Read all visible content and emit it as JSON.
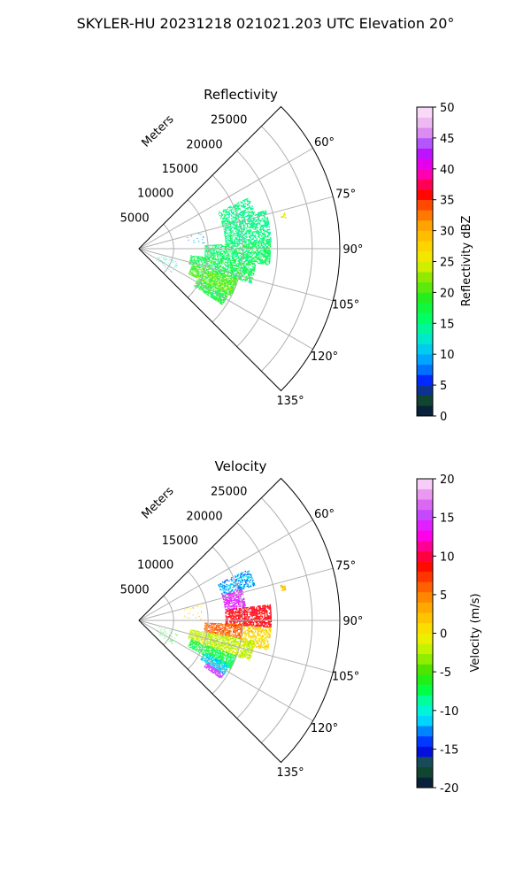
{
  "figure": {
    "suptitle": "SKYLER-HU  20231218  021021.203 UTC Elevation 20°"
  },
  "chart_data": [
    {
      "type": "polar-sector",
      "title": "Reflectivity",
      "radial_label": "Meters",
      "theta_range_deg": [
        45,
        135
      ],
      "theta_ticks": [
        "60°",
        "75°",
        "90°",
        "105°",
        "120°",
        "135°"
      ],
      "theta_tick_values": [
        60,
        75,
        90,
        105,
        120,
        135
      ],
      "r_range": [
        0,
        29000
      ],
      "r_ticks": [
        "5000",
        "10000",
        "15000",
        "20000",
        "25000"
      ],
      "r_tick_values": [
        5000,
        10000,
        15000,
        20000,
        25000
      ],
      "grid": true,
      "colorbar": {
        "label": "Reflectivity dBZ",
        "range": [
          0,
          50
        ],
        "ticks": [
          "0",
          "5",
          "10",
          "15",
          "20",
          "25",
          "30",
          "35",
          "40",
          "45",
          "50"
        ],
        "tick_values": [
          0,
          5,
          10,
          15,
          20,
          25,
          30,
          35,
          40,
          45,
          50
        ],
        "stops": [
          {
            "v": 0,
            "color": "#0a0f44"
          },
          {
            "v": 2,
            "color": "#0b3a2c"
          },
          {
            "v": 3.5,
            "color": "#1a5a35"
          },
          {
            "v": 5,
            "color": "#0000ff"
          },
          {
            "v": 7,
            "color": "#0060ff"
          },
          {
            "v": 10,
            "color": "#00c0ff"
          },
          {
            "v": 13,
            "color": "#00f0c0"
          },
          {
            "v": 16,
            "color": "#00ff60"
          },
          {
            "v": 19,
            "color": "#20ee20"
          },
          {
            "v": 22,
            "color": "#80e800"
          },
          {
            "v": 25,
            "color": "#eef000"
          },
          {
            "v": 28,
            "color": "#ffd000"
          },
          {
            "v": 31,
            "color": "#ffa000"
          },
          {
            "v": 34,
            "color": "#ff5000"
          },
          {
            "v": 36,
            "color": "#ff0000"
          },
          {
            "v": 38,
            "color": "#ff0070"
          },
          {
            "v": 40,
            "color": "#ff00e0"
          },
          {
            "v": 42,
            "color": "#c000ff"
          },
          {
            "v": 44,
            "color": "#b050ff"
          },
          {
            "v": 46,
            "color": "#e090f0"
          },
          {
            "v": 48,
            "color": "#f3c5f3"
          },
          {
            "v": 50,
            "color": "#fbe8fb"
          }
        ]
      },
      "echo_regions": [
        {
          "theta": [
            65,
            73
          ],
          "r": [
            12500,
            17500
          ],
          "value": 15,
          "spread": 2,
          "density": 0.55
        },
        {
          "theta": [
            73,
            87
          ],
          "r": [
            12500,
            19000
          ],
          "value": 15,
          "spread": 2,
          "density": 0.65
        },
        {
          "theta": [
            87,
            97
          ],
          "r": [
            9500,
            19000
          ],
          "value": 16,
          "spread": 2,
          "density": 0.7
        },
        {
          "theta": [
            97,
            107
          ],
          "r": [
            7500,
            17000
          ],
          "value": 17,
          "spread": 3,
          "density": 0.7
        },
        {
          "theta": [
            107,
            117
          ],
          "r": [
            8000,
            15000
          ],
          "value": 20,
          "spread": 3,
          "density": 0.8
        },
        {
          "theta": [
            117,
            124
          ],
          "r": [
            9500,
            14500
          ],
          "value": 18,
          "spread": 3,
          "density": 0.75
        },
        {
          "theta": [
            108,
            126
          ],
          "r": [
            3000,
            6000
          ],
          "value": 12,
          "spread": 3,
          "density": 0.12
        },
        {
          "theta": [
            75,
            85
          ],
          "r": [
            7000,
            9500
          ],
          "value": 10,
          "spread": 3,
          "density": 0.1
        },
        {
          "theta": [
            76,
            78
          ],
          "r": [
            21000,
            21600
          ],
          "value": 25,
          "spread": 2,
          "density": 0.6
        }
      ]
    },
    {
      "type": "polar-sector",
      "title": "Velocity",
      "radial_label": "Meters",
      "theta_range_deg": [
        45,
        135
      ],
      "theta_ticks": [
        "60°",
        "75°",
        "90°",
        "105°",
        "120°",
        "135°"
      ],
      "theta_tick_values": [
        60,
        75,
        90,
        105,
        120,
        135
      ],
      "r_range": [
        0,
        29000
      ],
      "r_ticks": [
        "5000",
        "10000",
        "15000",
        "20000",
        "25000"
      ],
      "r_tick_values": [
        5000,
        10000,
        15000,
        20000,
        25000
      ],
      "grid": true,
      "colorbar": {
        "label": "Velocity (m/s)",
        "range": [
          -20,
          20
        ],
        "ticks": [
          "-20",
          "-15",
          "-10",
          "-5",
          "0",
          "5",
          "10",
          "15",
          "20"
        ],
        "tick_values": [
          -20,
          -15,
          -10,
          -5,
          0,
          5,
          10,
          15,
          20
        ],
        "stops": [
          {
            "v": -20,
            "color": "#0a0f44"
          },
          {
            "v": -18.5,
            "color": "#0b3a2c"
          },
          {
            "v": -17,
            "color": "#1a5a35"
          },
          {
            "v": -15,
            "color": "#0000ff"
          },
          {
            "v": -13,
            "color": "#0070ff"
          },
          {
            "v": -11,
            "color": "#00e8ff"
          },
          {
            "v": -9,
            "color": "#00ffb0"
          },
          {
            "v": -7,
            "color": "#00ff30"
          },
          {
            "v": -5,
            "color": "#40e000"
          },
          {
            "v": -3,
            "color": "#a0f000"
          },
          {
            "v": -1,
            "color": "#e8f500"
          },
          {
            "v": 1,
            "color": "#ffd800"
          },
          {
            "v": 3,
            "color": "#ffb000"
          },
          {
            "v": 5,
            "color": "#ff8000"
          },
          {
            "v": 7,
            "color": "#ff4000"
          },
          {
            "v": 9,
            "color": "#ff0000"
          },
          {
            "v": 11,
            "color": "#ff0080"
          },
          {
            "v": 13,
            "color": "#ff00ff"
          },
          {
            "v": 15,
            "color": "#c040ff"
          },
          {
            "v": 17,
            "color": "#e070f0"
          },
          {
            "v": 19,
            "color": "#f3c0f3"
          },
          {
            "v": 20,
            "color": "#fbe8fb"
          }
        ]
      },
      "echo_regions": [
        {
          "theta": [
            65,
            73
          ],
          "r": [
            12500,
            17500
          ],
          "value": -12,
          "spread": 2,
          "density": 0.55
        },
        {
          "theta": [
            73,
            83
          ],
          "r": [
            12500,
            15500
          ],
          "value": 14,
          "spread": 1.5,
          "density": 0.7
        },
        {
          "theta": [
            83,
            93
          ],
          "r": [
            12500,
            19000
          ],
          "value": 9,
          "spread": 1.5,
          "density": 0.75
        },
        {
          "theta": [
            92,
            100
          ],
          "r": [
            9500,
            15000
          ],
          "value": 6,
          "spread": 2,
          "density": 0.75
        },
        {
          "theta": [
            93,
            103
          ],
          "r": [
            15000,
            19000
          ],
          "value": 1,
          "spread": 2,
          "density": 0.6
        },
        {
          "theta": [
            100,
            110
          ],
          "r": [
            7500,
            17000
          ],
          "value": -2,
          "spread": 2,
          "density": 0.75
        },
        {
          "theta": [
            110,
            118
          ],
          "r": [
            8000,
            15000
          ],
          "value": -7,
          "spread": 2,
          "density": 0.8
        },
        {
          "theta": [
            116,
            122
          ],
          "r": [
            10500,
            14500
          ],
          "value": -11,
          "spread": 1.5,
          "density": 0.8
        },
        {
          "theta": [
            122,
            125
          ],
          "r": [
            11500,
            14500
          ],
          "value": 15,
          "spread": 1,
          "density": 0.8
        },
        {
          "theta": [
            108,
            126
          ],
          "r": [
            3000,
            6000
          ],
          "value": -6,
          "spread": 3,
          "density": 0.12
        },
        {
          "theta": [
            75,
            90
          ],
          "r": [
            6500,
            9500
          ],
          "value": 2,
          "spread": 3,
          "density": 0.1
        },
        {
          "theta": [
            76,
            78
          ],
          "r": [
            21000,
            21600
          ],
          "value": 2,
          "spread": 1,
          "density": 0.6
        }
      ]
    }
  ]
}
